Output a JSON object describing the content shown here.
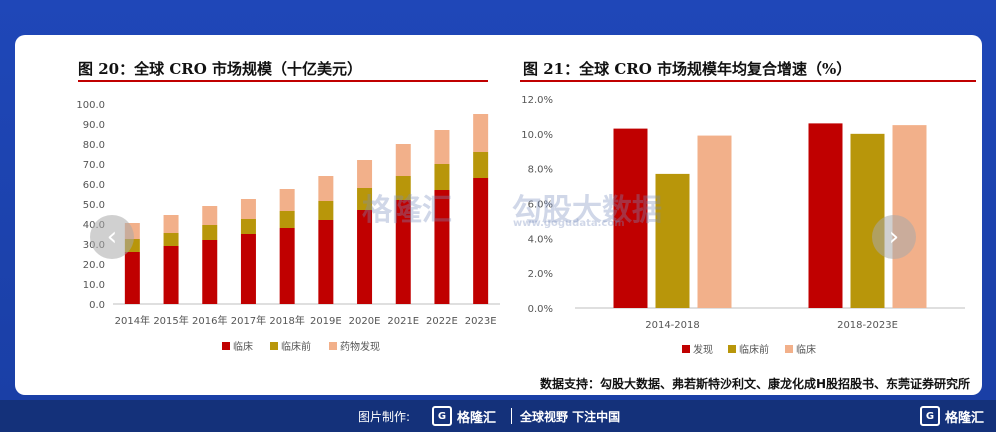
{
  "left_title": "图 20：全球 CRO 市场规模（十亿美元）",
  "right_title": "图 21：全球 CRO 市场规模年均复合增速（%）",
  "source": "数据支持：勾股大数据、弗若斯特沙利文、康龙化成H股招股书、东莞证券研究所",
  "footer": {
    "made_by": "图片制作:",
    "brand": "格隆汇",
    "slogan": "全球视野 下注中国",
    "brand_right": "格隆汇"
  },
  "watermarks": {
    "left": "格隆汇",
    "right": "勾股大数据",
    "right_url": "www.gogudata.com"
  },
  "nav": {
    "prev": "‹",
    "next": "›"
  },
  "colors": {
    "clinical": "#c00000",
    "preclinical": "#b8960a",
    "discovery": "#f2b08a",
    "accent": "#c00000"
  },
  "chart_data": [
    {
      "type": "bar",
      "stacked": true,
      "title": "图 20：全球 CRO 市场规模（十亿美元）",
      "categories": [
        "2014年",
        "2015年",
        "2016年",
        "2017年",
        "2018年",
        "2019E",
        "2020E",
        "2021E",
        "2022E",
        "2023E"
      ],
      "series": [
        {
          "name": "临床",
          "color": "#c00000",
          "values": [
            26,
            29,
            32,
            35,
            38,
            42,
            47,
            52,
            57,
            63
          ]
        },
        {
          "name": "临床前",
          "color": "#b8960a",
          "values": [
            6.5,
            6.5,
            7.5,
            7.5,
            8.5,
            9.5,
            11,
            12,
            13,
            13
          ]
        },
        {
          "name": "药物发现",
          "color": "#f2b08a",
          "values": [
            8,
            9,
            9.5,
            10,
            11,
            12.5,
            14,
            16,
            17,
            19
          ]
        }
      ],
      "ylim": [
        0,
        100
      ],
      "yticks": [
        "0.0",
        "10.0",
        "20.0",
        "30.0",
        "40.0",
        "50.0",
        "60.0",
        "70.0",
        "80.0",
        "90.0",
        "100.0"
      ],
      "legend": "bottom"
    },
    {
      "type": "bar",
      "title": "图 21：全球 CRO 市场规模年均复合增速（%）",
      "categories": [
        "2014-2018",
        "2018-2023E"
      ],
      "series": [
        {
          "name": "发现",
          "color": "#c00000",
          "values": [
            10.3,
            10.6
          ]
        },
        {
          "name": "临床前",
          "color": "#b8960a",
          "values": [
            7.7,
            10.0
          ]
        },
        {
          "name": "临床",
          "color": "#f2b08a",
          "values": [
            9.9,
            10.5
          ]
        }
      ],
      "ylim": [
        0,
        12
      ],
      "yticks": [
        "0.0%",
        "2.0%",
        "4.0%",
        "6.0%",
        "8.0%",
        "10.0%",
        "12.0%"
      ],
      "legend": "bottom"
    }
  ]
}
